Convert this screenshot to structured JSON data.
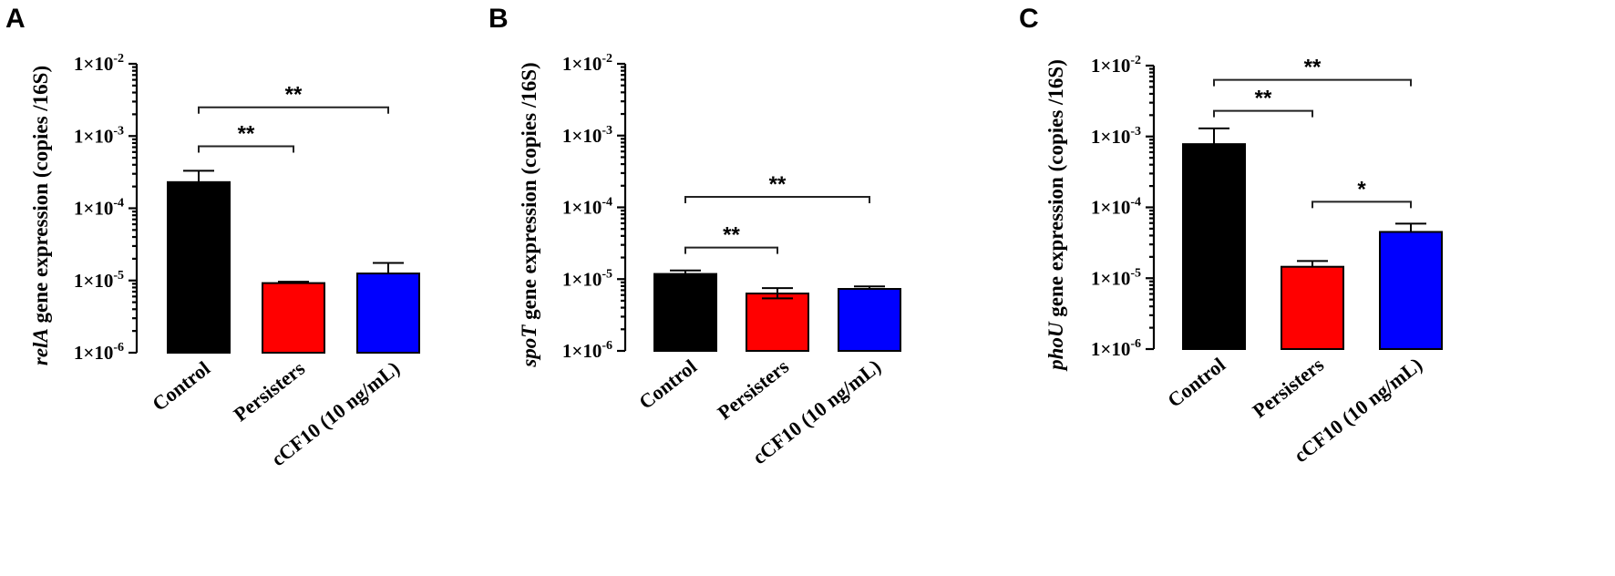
{
  "chart_data": [
    {
      "panel": "A",
      "type": "bar",
      "ylabel_italic": "relA",
      "ylabel_rest": " gene expression (copies /16S)",
      "yscale": "log",
      "ylim": [
        1e-06,
        0.01
      ],
      "yticks": [
        {
          "value": 1e-06,
          "base": "1×10",
          "exp": "-6"
        },
        {
          "value": 1e-05,
          "base": "1×10",
          "exp": "-5"
        },
        {
          "value": 0.0001,
          "base": "1×10",
          "exp": "-4"
        },
        {
          "value": 0.001,
          "base": "1×10",
          "exp": "-3"
        },
        {
          "value": 0.01,
          "base": "1×10",
          "exp": "-2"
        }
      ],
      "categories": [
        "Control",
        "Persisters",
        "cCF10 (10 ng/mL)"
      ],
      "colors": [
        "#000000",
        "#ff0000",
        "#0000ff"
      ],
      "values": [
        0.00023,
        9.2e-06,
        1.25e-05
      ],
      "errors_upper": [
        0.00033,
        9.6e-06,
        1.75e-05
      ],
      "significance": [
        {
          "from": 0,
          "to": 1,
          "y": 0.00072,
          "label": "**"
        },
        {
          "from": 0,
          "to": 2,
          "y": 0.0025,
          "label": "**"
        }
      ]
    },
    {
      "panel": "B",
      "type": "bar",
      "ylabel_italic": "spoT",
      "ylabel_rest": " gene expression (copies /16S)",
      "yscale": "log",
      "ylim": [
        1e-06,
        0.01
      ],
      "yticks": [
        {
          "value": 1e-06,
          "base": "1×10",
          "exp": "-6"
        },
        {
          "value": 1e-05,
          "base": "1×10",
          "exp": "-5"
        },
        {
          "value": 0.0001,
          "base": "1×10",
          "exp": "-4"
        },
        {
          "value": 0.001,
          "base": "1×10",
          "exp": "-3"
        },
        {
          "value": 0.01,
          "base": "1×10",
          "exp": "-2"
        }
      ],
      "categories": [
        "Control",
        "Persisters",
        "cCF10 (10 ng/mL)"
      ],
      "colors": [
        "#000000",
        "#ff0000",
        "#0000ff"
      ],
      "values": [
        1.18e-05,
        6.3e-06,
        7.3e-06
      ],
      "errors_upper": [
        1.32e-05,
        7.5e-06,
        7.9e-06
      ],
      "errors_lower": [
        null,
        5.4e-06,
        null
      ],
      "significance": [
        {
          "from": 0,
          "to": 1,
          "y": 2.75e-05,
          "label": "**"
        },
        {
          "from": 0,
          "to": 2,
          "y": 0.00014,
          "label": "**"
        }
      ]
    },
    {
      "panel": "C",
      "type": "bar",
      "ylabel_italic": "phoU",
      "ylabel_rest": " gene expression (copies /16S)",
      "yscale": "log",
      "ylim": [
        1e-06,
        0.01
      ],
      "yticks": [
        {
          "value": 1e-06,
          "base": "1×10",
          "exp": "-6"
        },
        {
          "value": 1e-05,
          "base": "1×10",
          "exp": "-5"
        },
        {
          "value": 0.0001,
          "base": "1×10",
          "exp": "-4"
        },
        {
          "value": 0.001,
          "base": "1×10",
          "exp": "-3"
        },
        {
          "value": 0.01,
          "base": "1×10",
          "exp": "-2"
        }
      ],
      "categories": [
        "Control",
        "Persisters",
        "cCF10 (10 ng/mL)"
      ],
      "colors": [
        "#000000",
        "#ff0000",
        "#0000ff"
      ],
      "values": [
        0.00078,
        1.45e-05,
        4.5e-05
      ],
      "errors_upper": [
        0.0013,
        1.75e-05,
        5.9e-05
      ],
      "significance": [
        {
          "from": 0,
          "to": 1,
          "y": 0.0023,
          "label": "**"
        },
        {
          "from": 0,
          "to": 2,
          "y": 0.0063,
          "label": "**"
        },
        {
          "from": 1,
          "to": 2,
          "y": 0.00012,
          "label": "*"
        }
      ]
    }
  ]
}
